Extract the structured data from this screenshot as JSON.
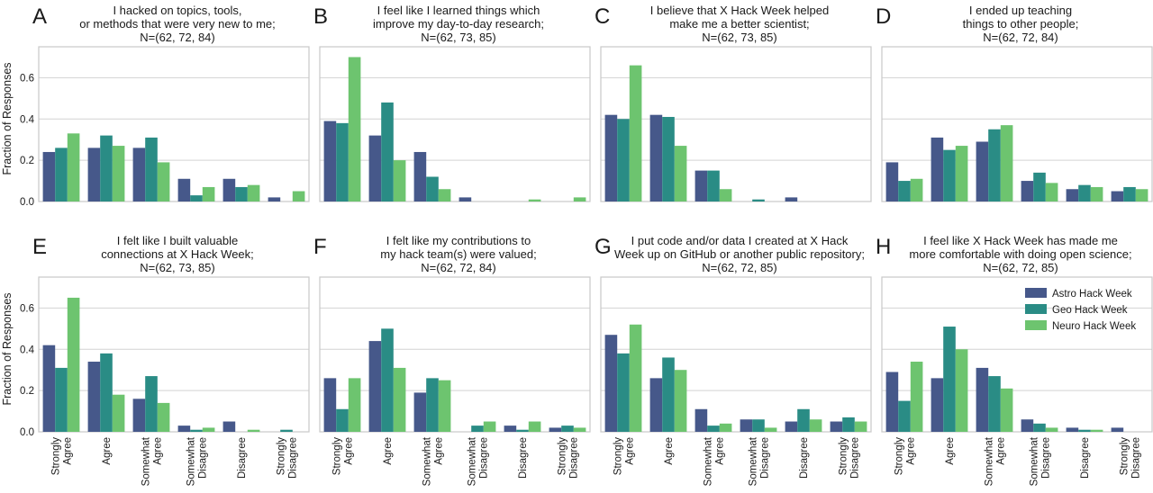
{
  "colors": {
    "astro": "#46588a",
    "geo": "#2a8c85",
    "neuro": "#6dc46f",
    "grid": "#d3d3d3",
    "frame": "#c8c8c8"
  },
  "chart_data": {
    "type": "bar",
    "ylabel": "Fraction of Responses",
    "ylim": [
      0,
      0.75
    ],
    "yticks": [
      "0.0",
      "0.2",
      "0.4",
      "0.6"
    ],
    "grid": true,
    "legend_placement": "top-right of panel H",
    "series_names": [
      "Astro Hack Week",
      "Geo Hack Week",
      "Neuro Hack Week"
    ],
    "categories": [
      [
        "Strongly",
        "Agree"
      ],
      [
        "Agree"
      ],
      [
        "Somewhat",
        "Agree"
      ],
      [
        "Somewhat",
        "Disagree"
      ],
      [
        "Disagree"
      ],
      [
        "Strongly",
        "Disagree"
      ]
    ],
    "panels": [
      {
        "letter": "A",
        "title": [
          "I hacked on topics, tools,",
          "or methods that were very new to me;",
          "N=(62, 72, 84)"
        ],
        "series": [
          {
            "name": "Astro Hack Week",
            "values": [
              0.24,
              0.26,
              0.26,
              0.11,
              0.11,
              0.02
            ]
          },
          {
            "name": "Geo Hack Week",
            "values": [
              0.26,
              0.32,
              0.31,
              0.03,
              0.07,
              0.0
            ]
          },
          {
            "name": "Neuro Hack Week",
            "values": [
              0.33,
              0.27,
              0.19,
              0.07,
              0.08,
              0.05
            ]
          }
        ]
      },
      {
        "letter": "B",
        "title": [
          "I feel like I learned things which",
          "improve my day-to-day research;",
          "N=(62, 73, 85)"
        ],
        "series": [
          {
            "name": "Astro Hack Week",
            "values": [
              0.39,
              0.32,
              0.24,
              0.02,
              0.0,
              0.0
            ]
          },
          {
            "name": "Geo Hack Week",
            "values": [
              0.38,
              0.48,
              0.12,
              0.0,
              0.0,
              0.0
            ]
          },
          {
            "name": "Neuro Hack Week",
            "values": [
              0.7,
              0.2,
              0.06,
              0.0,
              0.01,
              0.02
            ]
          }
        ]
      },
      {
        "letter": "C",
        "title": [
          "I believe that X Hack Week helped",
          "make me a better scientist;",
          "N=(62, 73, 85)"
        ],
        "series": [
          {
            "name": "Astro Hack Week",
            "values": [
              0.42,
              0.42,
              0.15,
              0.0,
              0.02,
              0.0
            ]
          },
          {
            "name": "Geo Hack Week",
            "values": [
              0.4,
              0.41,
              0.15,
              0.01,
              0.0,
              0.0
            ]
          },
          {
            "name": "Neuro Hack Week",
            "values": [
              0.66,
              0.27,
              0.06,
              0.0,
              0.0,
              0.0
            ]
          }
        ]
      },
      {
        "letter": "D",
        "title": [
          "I ended up teaching",
          "things to other people;",
          "N=(62, 72, 84)"
        ],
        "series": [
          {
            "name": "Astro Hack Week",
            "values": [
              0.19,
              0.31,
              0.29,
              0.1,
              0.06,
              0.05
            ]
          },
          {
            "name": "Geo Hack Week",
            "values": [
              0.1,
              0.25,
              0.35,
              0.14,
              0.08,
              0.07
            ]
          },
          {
            "name": "Neuro Hack Week",
            "values": [
              0.11,
              0.27,
              0.37,
              0.09,
              0.07,
              0.06
            ]
          }
        ]
      },
      {
        "letter": "E",
        "title": [
          "I felt like I built valuable",
          "connections at X Hack Week;",
          "N=(62, 73, 85)"
        ],
        "series": [
          {
            "name": "Astro Hack Week",
            "values": [
              0.42,
              0.34,
              0.16,
              0.03,
              0.05,
              0.0
            ]
          },
          {
            "name": "Geo Hack Week",
            "values": [
              0.31,
              0.38,
              0.27,
              0.01,
              0.0,
              0.01
            ]
          },
          {
            "name": "Neuro Hack Week",
            "values": [
              0.65,
              0.18,
              0.14,
              0.02,
              0.01,
              0.0
            ]
          }
        ]
      },
      {
        "letter": "F",
        "title": [
          "I felt like my contributions to",
          "my hack team(s) were valued;",
          "N=(62, 72, 84)"
        ],
        "series": [
          {
            "name": "Astro Hack Week",
            "values": [
              0.26,
              0.44,
              0.19,
              0.0,
              0.03,
              0.02
            ]
          },
          {
            "name": "Geo Hack Week",
            "values": [
              0.11,
              0.5,
              0.26,
              0.03,
              0.01,
              0.03
            ]
          },
          {
            "name": "Neuro Hack Week",
            "values": [
              0.26,
              0.31,
              0.25,
              0.05,
              0.05,
              0.02
            ]
          }
        ]
      },
      {
        "letter": "G",
        "title": [
          "I put code and/or data I created at X Hack",
          "Week up on GitHub or another public repository;",
          "N=(62, 72, 85)"
        ],
        "series": [
          {
            "name": "Astro Hack Week",
            "values": [
              0.47,
              0.26,
              0.11,
              0.06,
              0.05,
              0.05
            ]
          },
          {
            "name": "Geo Hack Week",
            "values": [
              0.38,
              0.36,
              0.03,
              0.06,
              0.11,
              0.07
            ]
          },
          {
            "name": "Neuro Hack Week",
            "values": [
              0.52,
              0.3,
              0.04,
              0.02,
              0.06,
              0.05
            ]
          }
        ]
      },
      {
        "letter": "H",
        "title": [
          "I feel like X Hack Week has made me",
          "more comfortable with doing open science;",
          "N=(62, 72, 85)"
        ],
        "series": [
          {
            "name": "Astro Hack Week",
            "values": [
              0.29,
              0.26,
              0.31,
              0.06,
              0.02,
              0.02
            ]
          },
          {
            "name": "Geo Hack Week",
            "values": [
              0.15,
              0.51,
              0.27,
              0.04,
              0.01,
              0.0
            ]
          },
          {
            "name": "Neuro Hack Week",
            "values": [
              0.34,
              0.4,
              0.21,
              0.02,
              0.01,
              0.0
            ]
          }
        ]
      }
    ]
  }
}
